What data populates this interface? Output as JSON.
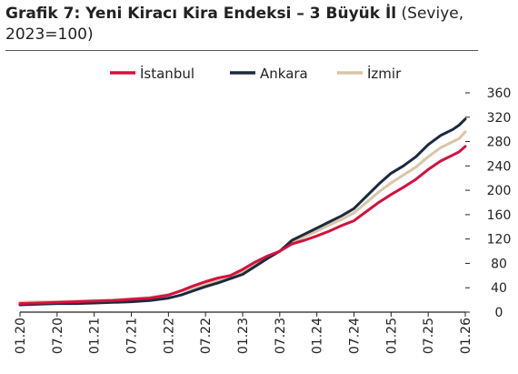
{
  "title": {
    "bold": "Grafik 7: Yeni Kiracı Kira Endeksi – 3 Büyük İl",
    "normal": " (Seviye, 2023=100)"
  },
  "chart_data": {
    "type": "line",
    "title": "Grafik 7: Yeni Kiracı Kira Endeksi – 3 Büyük İl (Seviye, 2023=100)",
    "xlabel": "",
    "ylabel": "",
    "ylim": [
      0,
      360
    ],
    "yticks": [
      0,
      40,
      80,
      120,
      160,
      200,
      240,
      280,
      320,
      360
    ],
    "x_tick_labels": [
      "01.20",
      "07.20",
      "01.21",
      "07.21",
      "01.22",
      "07.22",
      "01.23",
      "07.23",
      "01.24",
      "07.24",
      "01.25",
      "07.25",
      "01.26"
    ],
    "x_range": [
      "01.20",
      "01.26"
    ],
    "y_axis_position": "right",
    "grid": false,
    "legend_position": "top",
    "series": [
      {
        "name": "İstanbul",
        "color": "#d4123f",
        "points": [
          [
            "01.20",
            14
          ],
          [
            "04.20",
            15
          ],
          [
            "07.20",
            16
          ],
          [
            "10.20",
            17
          ],
          [
            "01.21",
            18
          ],
          [
            "04.21",
            19
          ],
          [
            "07.21",
            21
          ],
          [
            "10.21",
            23
          ],
          [
            "01.22",
            28
          ],
          [
            "03.22",
            35
          ],
          [
            "05.22",
            43
          ],
          [
            "07.22",
            50
          ],
          [
            "09.22",
            56
          ],
          [
            "11.22",
            60
          ],
          [
            "01.23",
            70
          ],
          [
            "03.23",
            82
          ],
          [
            "05.23",
            92
          ],
          [
            "07.23",
            100
          ],
          [
            "09.23",
            112
          ],
          [
            "11.23",
            118
          ],
          [
            "01.24",
            125
          ],
          [
            "03.24",
            133
          ],
          [
            "05.24",
            142
          ],
          [
            "07.24",
            150
          ],
          [
            "09.24",
            165
          ],
          [
            "11.24",
            180
          ],
          [
            "01.25",
            193
          ],
          [
            "03.25",
            205
          ],
          [
            "05.25",
            218
          ],
          [
            "07.25",
            234
          ],
          [
            "09.25",
            248
          ],
          [
            "11.25",
            258
          ],
          [
            "12.25",
            263
          ],
          [
            "01.26",
            272
          ]
        ]
      },
      {
        "name": "Ankara",
        "color": "#1b2a3f",
        "points": [
          [
            "01.20",
            12
          ],
          [
            "04.20",
            13
          ],
          [
            "07.20",
            14
          ],
          [
            "10.20",
            14
          ],
          [
            "01.21",
            15
          ],
          [
            "04.21",
            16
          ],
          [
            "07.21",
            17
          ],
          [
            "10.21",
            19
          ],
          [
            "01.22",
            23
          ],
          [
            "03.22",
            28
          ],
          [
            "05.22",
            35
          ],
          [
            "07.22",
            42
          ],
          [
            "09.22",
            48
          ],
          [
            "11.22",
            55
          ],
          [
            "01.23",
            62
          ],
          [
            "03.23",
            75
          ],
          [
            "05.23",
            88
          ],
          [
            "07.23",
            100
          ],
          [
            "09.23",
            118
          ],
          [
            "11.23",
            128
          ],
          [
            "01.24",
            138
          ],
          [
            "03.24",
            148
          ],
          [
            "05.24",
            158
          ],
          [
            "07.24",
            170
          ],
          [
            "09.24",
            190
          ],
          [
            "11.24",
            210
          ],
          [
            "01.25",
            228
          ],
          [
            "03.25",
            240
          ],
          [
            "05.25",
            255
          ],
          [
            "07.25",
            275
          ],
          [
            "09.25",
            290
          ],
          [
            "11.25",
            300
          ],
          [
            "12.25",
            307
          ],
          [
            "01.26",
            317
          ]
        ]
      },
      {
        "name": "İzmir",
        "color": "#d9c6a5",
        "points": [
          [
            "01.20",
            16
          ],
          [
            "04.20",
            17
          ],
          [
            "07.20",
            17
          ],
          [
            "10.20",
            18
          ],
          [
            "01.21",
            19
          ],
          [
            "04.21",
            20
          ],
          [
            "07.21",
            22
          ],
          [
            "10.21",
            24
          ],
          [
            "01.22",
            29
          ],
          [
            "03.22",
            34
          ],
          [
            "05.22",
            40
          ],
          [
            "07.22",
            46
          ],
          [
            "09.22",
            52
          ],
          [
            "11.22",
            58
          ],
          [
            "01.23",
            66
          ],
          [
            "03.23",
            79
          ],
          [
            "05.23",
            90
          ],
          [
            "07.23",
            100
          ],
          [
            "09.23",
            114
          ],
          [
            "11.23",
            124
          ],
          [
            "01.24",
            133
          ],
          [
            "03.24",
            143
          ],
          [
            "05.24",
            152
          ],
          [
            "07.24",
            163
          ],
          [
            "09.24",
            180
          ],
          [
            "11.24",
            197
          ],
          [
            "01.25",
            212
          ],
          [
            "03.25",
            225
          ],
          [
            "05.25",
            238
          ],
          [
            "07.25",
            255
          ],
          [
            "09.25",
            270
          ],
          [
            "11.25",
            280
          ],
          [
            "12.25",
            285
          ],
          [
            "01.26",
            296
          ]
        ]
      }
    ]
  }
}
